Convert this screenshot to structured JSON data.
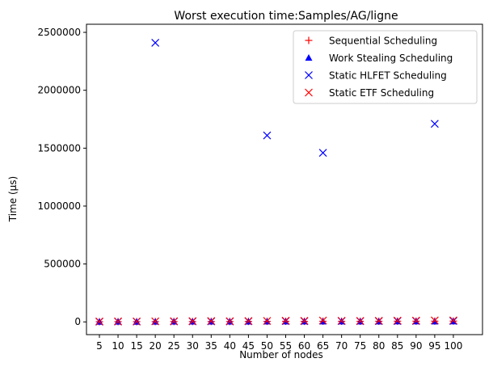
{
  "chart_data": {
    "type": "scatter",
    "title": "Worst execution time:Samples/AG/ligne",
    "xlabel": "Number of nodes",
    "ylabel": "Time (µs)",
    "categories": [
      "5",
      "10",
      "15",
      "20",
      "25",
      "30",
      "35",
      "40",
      "45",
      "50",
      "55",
      "60",
      "65",
      "70",
      "75",
      "80",
      "85",
      "90",
      "95",
      "100"
    ],
    "ylim": [
      -110000,
      2570000
    ],
    "yticks": [
      0,
      500000,
      1000000,
      1500000,
      2000000,
      2500000
    ],
    "ytick_labels": [
      "0",
      "500000",
      "1000000",
      "1500000",
      "2000000",
      "2500000"
    ],
    "grid": false,
    "legend_position": "top-right",
    "series": [
      {
        "name": "Sequential Scheduling",
        "marker": "plus",
        "color": "#ff0000",
        "values": [
          1500,
          2000,
          2000,
          2500,
          3000,
          3000,
          3500,
          3000,
          4000,
          4500,
          5000,
          4500,
          5500,
          5000,
          5000,
          5500,
          6000,
          6000,
          6500,
          7000
        ]
      },
      {
        "name": "Work Stealing Scheduling",
        "marker": "triangle",
        "color": "#0000ff",
        "values": [
          1000,
          1500,
          1000,
          1500,
          2000,
          2000,
          2500,
          2000,
          2500,
          3000,
          3500,
          3000,
          3000,
          3500,
          3000,
          3500,
          4000,
          4000,
          3500,
          4500
        ]
      },
      {
        "name": "Static HLFET Scheduling",
        "marker": "x",
        "color": "#0000ff",
        "values": [
          2000,
          3000,
          3000,
          2410000,
          4000,
          4500,
          5000,
          4000,
          5500,
          1610000,
          7000,
          6000,
          1460000,
          7000,
          6500,
          7000,
          7500,
          8000,
          1710000,
          8500
        ]
      },
      {
        "name": "Static ETF Scheduling",
        "marker": "x",
        "color": "#ff0000",
        "values": [
          3000,
          4000,
          3500,
          5000,
          5500,
          6500,
          7000,
          5500,
          7500,
          8000,
          10000,
          9000,
          12000,
          9500,
          8500,
          9000,
          10500,
          11000,
          12500,
          13000
        ]
      }
    ]
  }
}
